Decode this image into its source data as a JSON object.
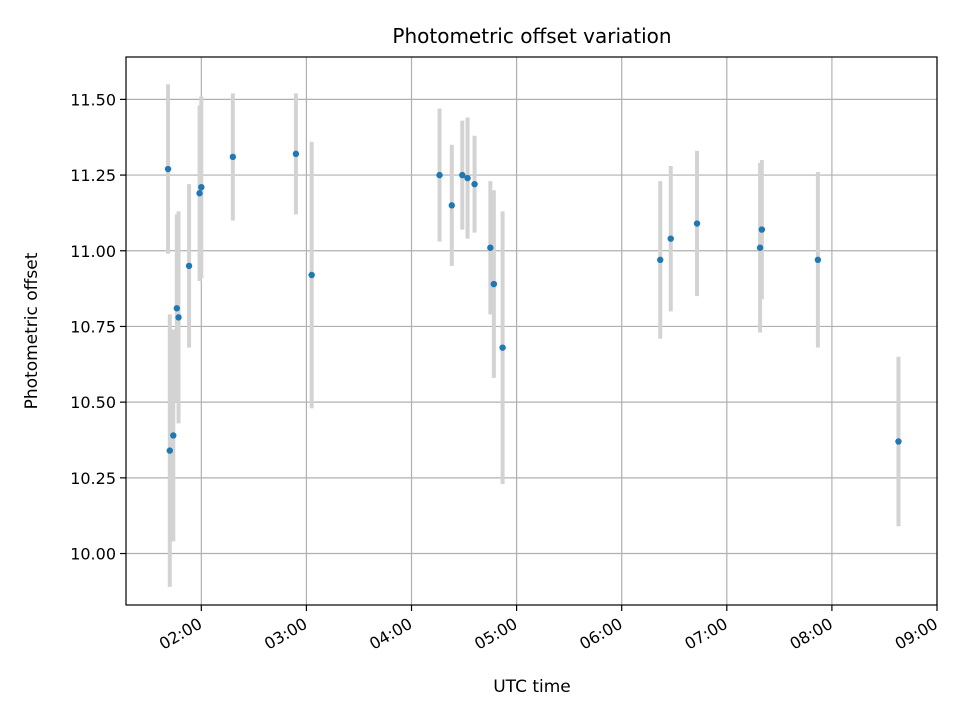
{
  "chart_data": {
    "type": "scatter",
    "title": "Photometric offset variation",
    "xlabel": "UTC time",
    "ylabel": "Photometric offset",
    "x_ticks": [
      "02:00",
      "03:00",
      "04:00",
      "05:00",
      "06:00",
      "07:00",
      "08:00",
      "09:00"
    ],
    "y_ticks": [
      "10.00",
      "10.25",
      "10.50",
      "10.75",
      "11.00",
      "11.25",
      "11.50"
    ],
    "xlim": [
      "01:17",
      "09:00"
    ],
    "ylim": [
      9.83,
      11.64
    ],
    "grid": true,
    "colors": {
      "points": "#1f77b4",
      "errorbars": "#d3d3d3",
      "grid": "#b0b0b0"
    },
    "points": [
      {
        "x": "01:41",
        "y": 11.27,
        "err": 0.28
      },
      {
        "x": "01:42",
        "y": 10.34,
        "err": 0.45
      },
      {
        "x": "01:44",
        "y": 10.39,
        "err": 0.35
      },
      {
        "x": "01:46",
        "y": 10.81,
        "err": 0.31
      },
      {
        "x": "01:47",
        "y": 10.78,
        "err": 0.35
      },
      {
        "x": "01:53",
        "y": 10.95,
        "err": 0.27
      },
      {
        "x": "01:59",
        "y": 11.19,
        "err": 0.29
      },
      {
        "x": "02:00",
        "y": 11.21,
        "err": 0.3
      },
      {
        "x": "02:18",
        "y": 11.31,
        "err": 0.21
      },
      {
        "x": "02:54",
        "y": 11.32,
        "err": 0.2
      },
      {
        "x": "03:03",
        "y": 10.92,
        "err": 0.44
      },
      {
        "x": "04:16",
        "y": 11.25,
        "err": 0.22
      },
      {
        "x": "04:23",
        "y": 11.15,
        "err": 0.2
      },
      {
        "x": "04:29",
        "y": 11.25,
        "err": 0.18
      },
      {
        "x": "04:32",
        "y": 11.24,
        "err": 0.2
      },
      {
        "x": "04:36",
        "y": 11.22,
        "err": 0.16
      },
      {
        "x": "04:45",
        "y": 11.01,
        "err": 0.22
      },
      {
        "x": "04:47",
        "y": 10.89,
        "err": 0.31
      },
      {
        "x": "04:52",
        "y": 10.68,
        "err": 0.45
      },
      {
        "x": "06:22",
        "y": 10.97,
        "err": 0.26
      },
      {
        "x": "06:28",
        "y": 11.04,
        "err": 0.24
      },
      {
        "x": "06:43",
        "y": 11.09,
        "err": 0.24
      },
      {
        "x": "07:19",
        "y": 11.01,
        "err": 0.28
      },
      {
        "x": "07:20",
        "y": 11.07,
        "err": 0.23
      },
      {
        "x": "07:52",
        "y": 10.97,
        "err": 0.29
      },
      {
        "x": "08:38",
        "y": 10.37,
        "err": 0.28
      }
    ]
  }
}
